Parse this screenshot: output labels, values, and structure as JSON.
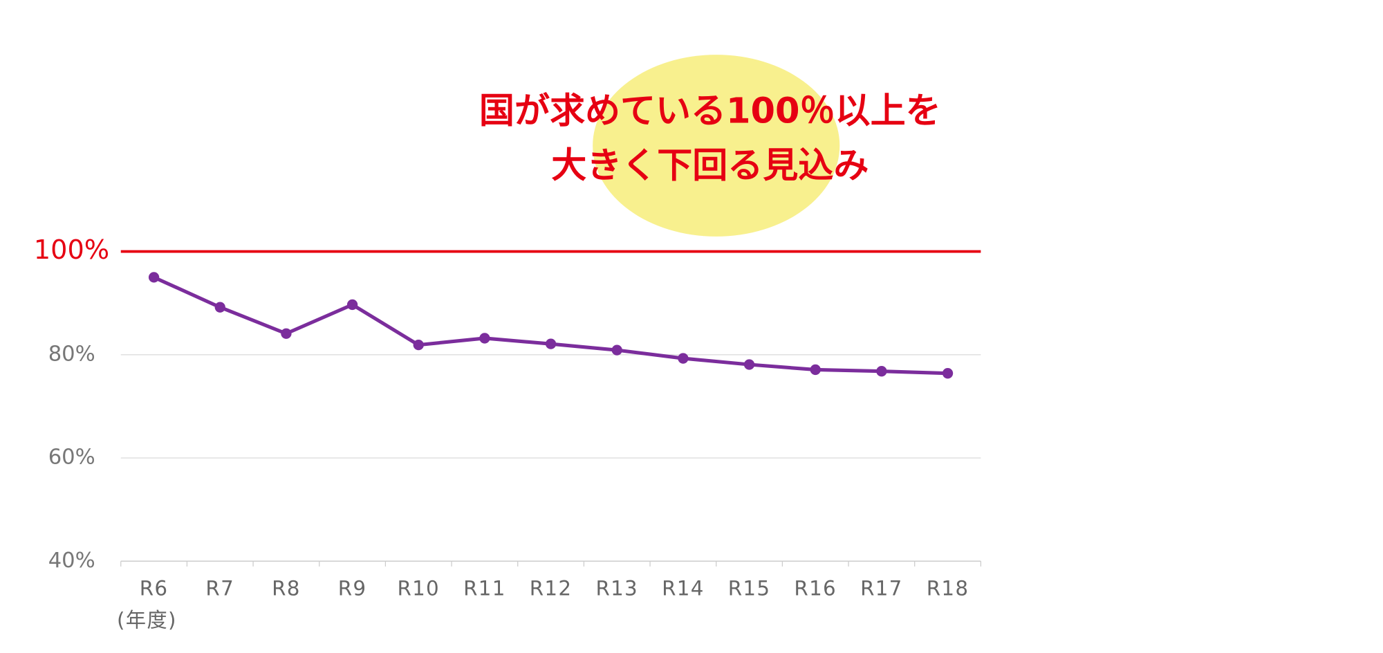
{
  "chart_data": {
    "type": "line",
    "annotation": [
      "国が求めている100％以上を",
      "大きく下回る見込み"
    ],
    "categories": [
      "R6",
      "R7",
      "R8",
      "R9",
      "R10",
      "R11",
      "R12",
      "R13",
      "R14",
      "R15",
      "R16",
      "R17",
      "R18"
    ],
    "x_label": "(年度)",
    "series": [
      {
        "color": "#7b2d9c",
        "values": [
          95.0,
          89.2,
          84.1,
          89.7,
          81.9,
          83.2,
          82.1,
          80.9,
          79.3,
          78.1,
          77.1,
          76.8,
          76.4
        ]
      }
    ],
    "ylim": [
      40,
      100
    ],
    "yticks": [
      {
        "value": 40,
        "label": "40%"
      },
      {
        "value": 60,
        "label": "60%"
      },
      {
        "value": 80,
        "label": "80%"
      }
    ],
    "reference_line": {
      "value": 100,
      "label": "100%",
      "color": "#e60012"
    },
    "grid": true
  }
}
